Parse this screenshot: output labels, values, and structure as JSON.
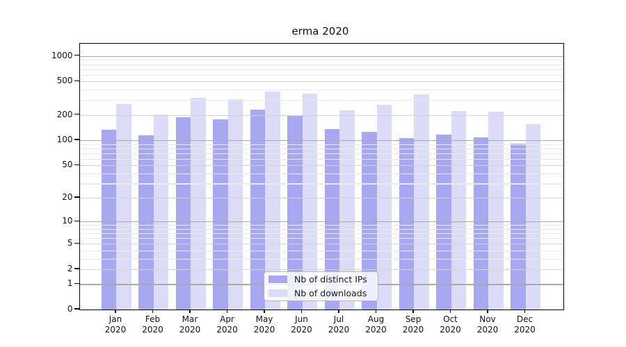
{
  "chart_data": {
    "type": "bar",
    "title": "erma 2020",
    "categories": [
      "Jan",
      "Feb",
      "Mar",
      "Apr",
      "May",
      "Jun",
      "Jul",
      "Aug",
      "Sep",
      "Oct",
      "Nov",
      "Dec"
    ],
    "x_tick_second_line": "2020",
    "series": [
      {
        "name": "Nb of distinct IPs",
        "color": "#a8a8f2",
        "values": [
          133,
          115,
          189,
          177,
          233,
          199,
          136,
          125,
          105,
          117,
          107,
          91
        ]
      },
      {
        "name": "Nb of downloads",
        "color": "#dcdcf8",
        "values": [
          267,
          202,
          322,
          306,
          382,
          356,
          226,
          264,
          352,
          222,
          219,
          154
        ]
      }
    ],
    "yscale": "log1p",
    "y_ticks": [
      1000,
      500,
      200,
      100,
      50,
      20,
      10,
      5,
      2,
      1,
      0
    ],
    "y_minor_ticks": [
      3,
      4,
      6,
      7,
      8,
      9,
      30,
      40,
      60,
      70,
      80,
      90,
      300,
      400,
      600,
      700,
      800,
      900
    ],
    "ylim": [
      0,
      1400
    ],
    "grid": true,
    "legend_position": "lower center"
  },
  "colors": {
    "background": "#ffffff",
    "axis": "#000000",
    "grid_major": "#a9a9a9",
    "grid_labeled": "#d4d4d4",
    "grid_minor": "#eaeaea",
    "text": "#111111"
  }
}
